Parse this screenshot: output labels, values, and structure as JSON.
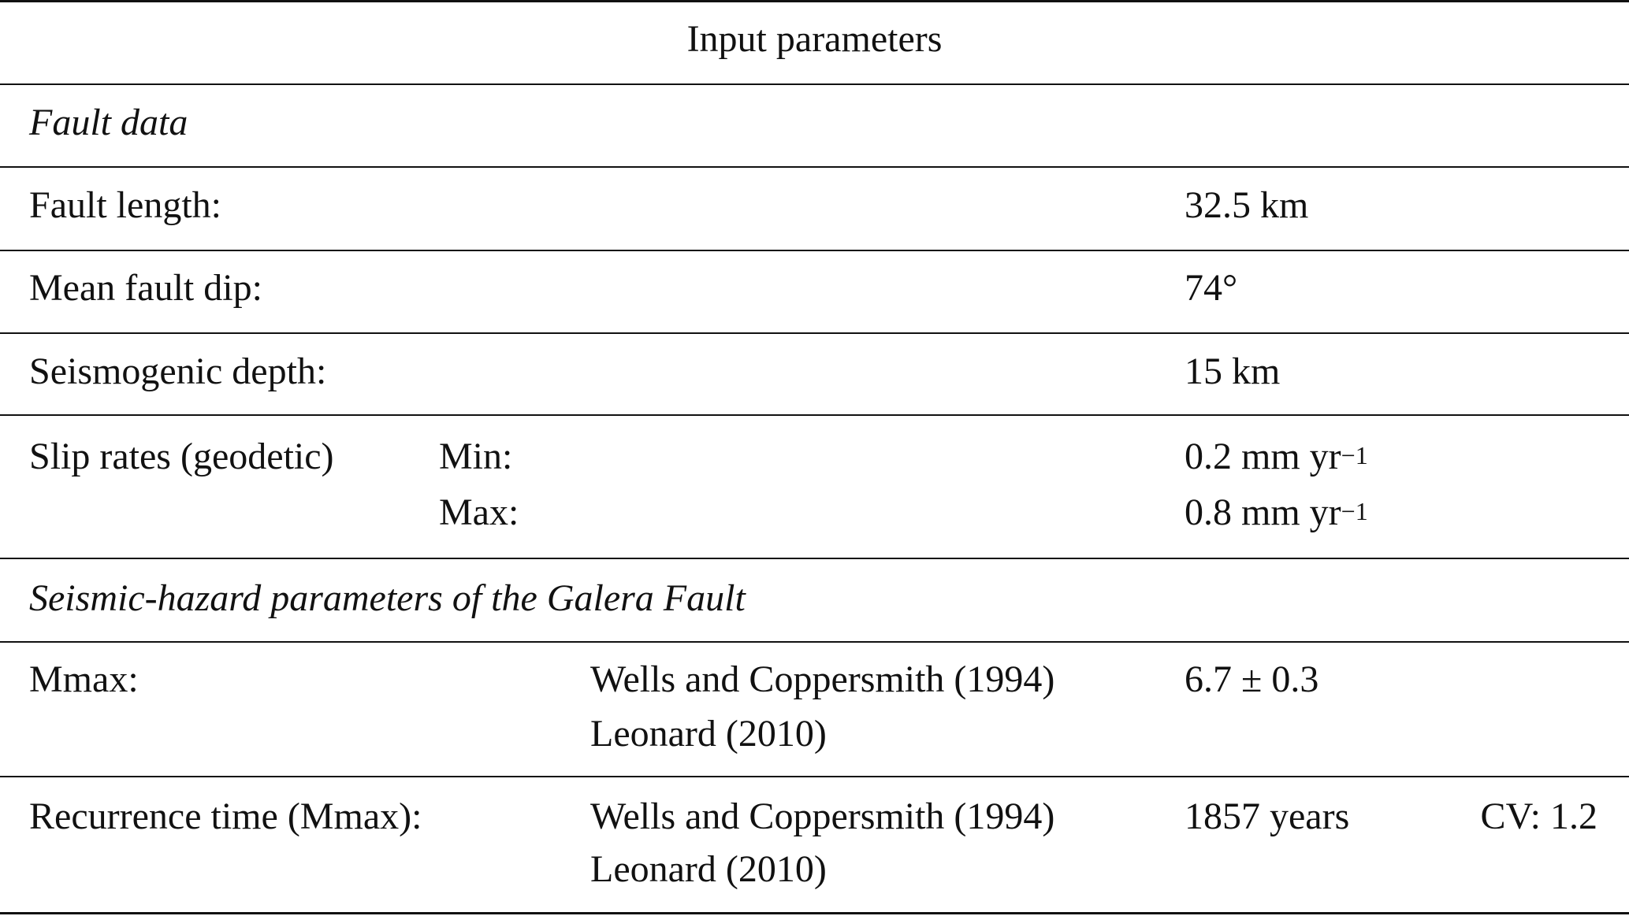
{
  "header": "Input parameters",
  "sections": {
    "fault_data": {
      "title": "Fault data",
      "rows": [
        {
          "label": "Fault length:",
          "value": "32.5 km"
        },
        {
          "label": "Mean fault dip:",
          "value": "74°"
        },
        {
          "label": "Seismogenic depth:",
          "value": "15 km"
        }
      ],
      "slip": {
        "label": "Slip rates (geodetic)",
        "min_label": "Min:",
        "min_value": "0.2 mm yr",
        "max_label": "Max:",
        "max_value": "0.8 mm yr",
        "exponent": "−1"
      }
    },
    "hazard": {
      "title": "Seismic-hazard parameters of the Galera Fault",
      "mmax": {
        "label": "Mmax:",
        "refs": [
          "Wells and Coppersmith (1994)",
          "Leonard (2010)"
        ],
        "value": "6.7 ± 0.3"
      },
      "recurrence": {
        "label": "Recurrence time (Mmax):",
        "refs": [
          "Wells and Coppersmith (1994)",
          "Leonard (2010)"
        ],
        "value": "1857 years",
        "cv": "CV: 1.2"
      }
    }
  }
}
